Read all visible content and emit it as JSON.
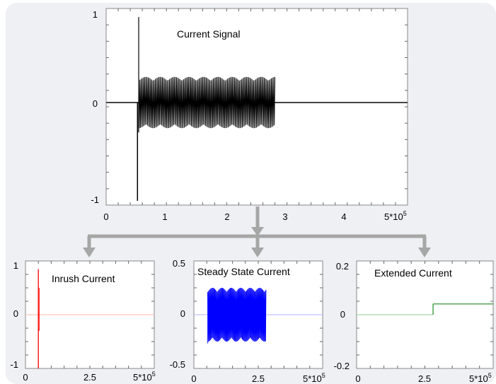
{
  "colors": {
    "panel_background": "#eef0f3",
    "arrow": "#a6a6a6",
    "main_signal": "#000000",
    "inrush": "#ff0000",
    "steady": "#0000ff",
    "extended": "#1e8a1e"
  },
  "chart_data": [
    {
      "type": "line",
      "title": "Current Signal",
      "xlabel": "",
      "ylabel": "",
      "xlim": [
        0,
        500000
      ],
      "ylim": [
        -1.2,
        1.1
      ],
      "x_ticks": [
        "0",
        "1",
        "2",
        "3",
        "4"
      ],
      "x_tick_last": {
        "base": "5*10",
        "exp": "5"
      },
      "y_ticks": [
        "1",
        "0",
        "-1"
      ],
      "grid": false,
      "series": [
        {
          "values_description_free": true,
          "segments": [
            {
              "x_start": 0,
              "x_end": 52000,
              "amplitude": 0
            },
            {
              "x_start": 52000,
              "x_end": 54000,
              "amplitude_max": 1.0,
              "amplitude_min": -1.15
            },
            {
              "x_start": 54000,
              "x_end": 280000,
              "amplitude": 0.3
            },
            {
              "x_start": 280000,
              "x_end": 500000,
              "amplitude": 0
            }
          ]
        }
      ]
    },
    {
      "type": "line",
      "title": "Inrush Current",
      "xlim": [
        0,
        500000
      ],
      "ylim": [
        -1,
        1
      ],
      "x_ticks": [
        "0",
        "2.5"
      ],
      "x_tick_last": {
        "base": "5*10",
        "exp": "5"
      },
      "y_ticks": [
        "1",
        "0",
        "-1"
      ],
      "grid": false,
      "series": [
        {
          "spike_x": 50000,
          "amplitude_max": 0.85,
          "amplitude_min": -1.0
        }
      ]
    },
    {
      "type": "line",
      "title": "Steady State Current",
      "xlim": [
        0,
        500000
      ],
      "ylim": [
        -0.6,
        0.6
      ],
      "x_ticks": [
        "0",
        "2.5"
      ],
      "x_tick_last": {
        "base": "5*10",
        "exp": "5"
      },
      "y_ticks": [
        "0.5",
        "0",
        "-0.5"
      ],
      "grid": false,
      "series": [
        {
          "x_start": 54000,
          "x_end": 280000,
          "amplitude": 0.3
        }
      ]
    },
    {
      "type": "line",
      "title": "Extended Current",
      "xlim": [
        0,
        500000
      ],
      "ylim": [
        -0.2,
        0.2
      ],
      "x_ticks": [
        "0",
        "2.5"
      ],
      "x_tick_last": {
        "base": "5*10",
        "exp": "5"
      },
      "y_ticks": [
        "0.2",
        "0",
        "-0.2"
      ],
      "grid": false,
      "series": [
        {
          "step_x": 280000,
          "low": 0.0,
          "high": 0.04
        }
      ]
    }
  ]
}
